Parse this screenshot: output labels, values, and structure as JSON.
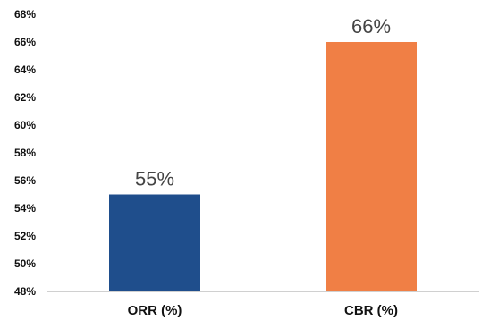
{
  "chart_data": {
    "type": "bar",
    "categories": [
      "ORR (%)",
      "CBR (%)"
    ],
    "values": [
      55,
      66
    ],
    "value_labels": [
      "55%",
      "66%"
    ],
    "colors": [
      "#1F4E8C",
      "#F07F45"
    ],
    "ylim": [
      48,
      68
    ],
    "yticks": [
      48,
      50,
      52,
      54,
      56,
      58,
      60,
      62,
      64,
      66,
      68
    ],
    "ytick_labels": [
      "48%",
      "50%",
      "52%",
      "54%",
      "56%",
      "58%",
      "60%",
      "62%",
      "64%",
      "66%",
      "68%"
    ],
    "grid": false,
    "title": "",
    "xlabel": "",
    "ylabel": ""
  }
}
